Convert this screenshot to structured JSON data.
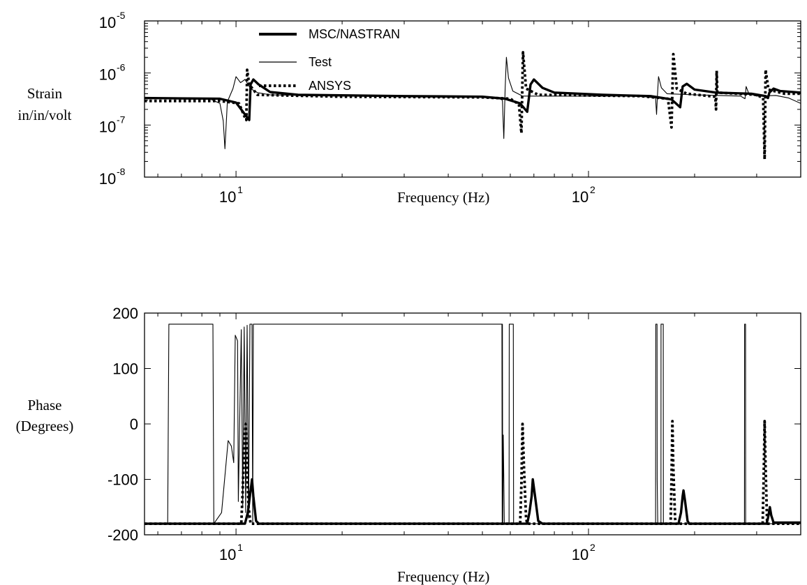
{
  "chart_data": [
    {
      "type": "line",
      "id": "magnitude",
      "xscale": "log",
      "yscale": "log",
      "xlim": [
        5.5,
        400
      ],
      "ylim": [
        1e-08,
        1e-05
      ],
      "xlabel": "Frequency (Hz)",
      "ylabel": [
        "Strain",
        "in/in/volt"
      ],
      "xticks": [
        {
          "value": 10,
          "base": "10",
          "exp": "1"
        },
        {
          "value": 100,
          "base": "10",
          "exp": "2"
        }
      ],
      "yticks": [
        {
          "value": 1e-05,
          "base": "10",
          "exp": "-5"
        },
        {
          "value": 1e-06,
          "base": "10",
          "exp": "-6"
        },
        {
          "value": 1e-07,
          "base": "10",
          "exp": "-7"
        },
        {
          "value": 1e-08,
          "base": "10",
          "exp": "-8"
        }
      ],
      "grid": false,
      "legend_position": "top-center",
      "series": [
        {
          "name": "MSC/NASTRAN",
          "style": "thick-solid",
          "points": [
            [
              5.5,
              3.3e-07
            ],
            [
              9,
              3.2e-07
            ],
            [
              10,
              2.7e-07
            ],
            [
              10.6,
              1.6e-07
            ],
            [
              10.9,
              1.25e-07
            ],
            [
              11.0,
              6e-07
            ],
            [
              11.2,
              7.5e-07
            ],
            [
              11.6,
              6e-07
            ],
            [
              12.5,
              4.3e-07
            ],
            [
              15,
              3.8e-07
            ],
            [
              30,
              3.6e-07
            ],
            [
              50,
              3.5e-07
            ],
            [
              58,
              3.2e-07
            ],
            [
              64,
              2.6e-07
            ],
            [
              67,
              1.8e-07
            ],
            [
              68.5,
              6e-07
            ],
            [
              70,
              7.5e-07
            ],
            [
              74,
              5.2e-07
            ],
            [
              80,
              4.2e-07
            ],
            [
              110,
              3.8e-07
            ],
            [
              150,
              3.6e-07
            ],
            [
              172,
              3.1e-07
            ],
            [
              182,
              2.2e-07
            ],
            [
              185,
              5.5e-07
            ],
            [
              190,
              6.2e-07
            ],
            [
              200,
              4.8e-07
            ],
            [
              230,
              4.2e-07
            ],
            [
              290,
              4e-07
            ],
            [
              318,
              3.6e-07
            ],
            [
              323,
              3.3e-07
            ],
            [
              326,
              4.2e-07
            ],
            [
              335,
              5e-07
            ],
            [
              350,
              4.5e-07
            ],
            [
              400,
              4.2e-07
            ]
          ]
        },
        {
          "name": "Test",
          "style": "thin-solid",
          "points": [
            [
              5.5,
              3.2e-07
            ],
            [
              8.5,
              3.1e-07
            ],
            [
              9.0,
              2.6e-07
            ],
            [
              9.2,
              1.2e-07
            ],
            [
              9.3,
              3.5e-08
            ],
            [
              9.45,
              2.8e-07
            ],
            [
              9.8,
              5e-07
            ],
            [
              10.0,
              8.5e-07
            ],
            [
              10.3,
              6.5e-07
            ],
            [
              10.6,
              7.5e-07
            ],
            [
              11.0,
              5e-07
            ],
            [
              11.5,
              4.2e-07
            ],
            [
              12.5,
              3.8e-07
            ],
            [
              20,
              3.6e-07
            ],
            [
              40,
              3.5e-07
            ],
            [
              55,
              3.4e-07
            ],
            [
              57,
              3e-07
            ],
            [
              57.5,
              5.5e-08
            ],
            [
              58,
              5e-07
            ],
            [
              58.5,
              2e-06
            ],
            [
              59.3,
              8e-07
            ],
            [
              61,
              4.5e-07
            ],
            [
              65,
              3.6e-07
            ],
            [
              90,
              3.6e-07
            ],
            [
              140,
              3.6e-07
            ],
            [
              155,
              3.3e-07
            ],
            [
              156,
              1.6e-07
            ],
            [
              157,
              4e-07
            ],
            [
              158,
              8.5e-07
            ],
            [
              161,
              5.2e-07
            ],
            [
              167,
              4e-07
            ],
            [
              200,
              3.8e-07
            ],
            [
              270,
              3.6e-07
            ],
            [
              278,
              3.2e-07
            ],
            [
              280,
              5.5e-07
            ],
            [
              285,
              4e-07
            ],
            [
              300,
              3.6e-07
            ],
            [
              340,
              3.7e-07
            ],
            [
              370,
              3.3e-07
            ],
            [
              400,
              2.6e-07
            ]
          ]
        },
        {
          "name": "ANSYS",
          "style": "dotted",
          "points": [
            [
              5.5,
              2.9e-07
            ],
            [
              9,
              2.9e-07
            ],
            [
              10.2,
              2.6e-07
            ],
            [
              10.55,
              1.5e-07
            ],
            [
              10.7,
              1.25e-07
            ],
            [
              10.75,
              1.15e-06
            ],
            [
              10.9,
              6e-07
            ],
            [
              11.5,
              3.8e-07
            ],
            [
              20,
              3.5e-07
            ],
            [
              50,
              3.4e-07
            ],
            [
              60,
              3.2e-07
            ],
            [
              63.5,
              2.5e-07
            ],
            [
              64.5,
              7e-08
            ],
            [
              65.2,
              2.5e-06
            ],
            [
              66.5,
              5e-07
            ],
            [
              72,
              3.8e-07
            ],
            [
              140,
              3.6e-07
            ],
            [
              168,
              3.2e-07
            ],
            [
              172,
              9e-08
            ],
            [
              174,
              2.3e-06
            ],
            [
              178,
              5e-07
            ],
            [
              190,
              4e-07
            ],
            [
              229,
              3.5e-07
            ],
            [
              230,
              2e-07
            ],
            [
              231,
              1.1e-06
            ],
            [
              232,
              4.2e-07
            ],
            [
              300,
              3.8e-07
            ],
            [
              313,
              3.3e-07
            ],
            [
              316,
              2.2e-08
            ],
            [
              318,
              1.15e-06
            ],
            [
              324,
              4.8e-07
            ],
            [
              360,
              4e-07
            ],
            [
              400,
              4e-07
            ]
          ]
        }
      ]
    },
    {
      "type": "line",
      "id": "phase",
      "xscale": "log",
      "yscale": "linear",
      "xlim": [
        5.5,
        400
      ],
      "ylim": [
        -200,
        200
      ],
      "xlabel": "Frequency (Hz)",
      "ylabel": [
        "Phase",
        "(Degrees)"
      ],
      "xticks": [
        {
          "value": 10,
          "base": "10",
          "exp": "1"
        },
        {
          "value": 100,
          "base": "10",
          "exp": "2"
        }
      ],
      "yticks": [
        {
          "value": 200,
          "label": "200"
        },
        {
          "value": 100,
          "label": "100"
        },
        {
          "value": 0,
          "label": "0"
        },
        {
          "value": -100,
          "label": "-100"
        },
        {
          "value": -200,
          "label": "-200"
        }
      ],
      "grid": false,
      "series": [
        {
          "name": "MSC/NASTRAN",
          "style": "thick-solid",
          "points": [
            [
              5.5,
              -180
            ],
            [
              10.6,
              -180
            ],
            [
              10.8,
              -160
            ],
            [
              11.0,
              -120
            ],
            [
              11.1,
              -100
            ],
            [
              11.2,
              -130
            ],
            [
              11.4,
              -175
            ],
            [
              11.6,
              -180
            ],
            [
              67,
              -180
            ],
            [
              68,
              -160
            ],
            [
              69,
              -130
            ],
            [
              69.5,
              -100
            ],
            [
              70.5,
              -130
            ],
            [
              72,
              -175
            ],
            [
              74,
              -180
            ],
            [
              180,
              -180
            ],
            [
              183,
              -160
            ],
            [
              185,
              -130
            ],
            [
              186,
              -120
            ],
            [
              188,
              -140
            ],
            [
              191,
              -175
            ],
            [
              193,
              -180
            ],
            [
              320,
              -180
            ],
            [
              323,
              -170
            ],
            [
              325,
              -160
            ],
            [
              327,
              -150
            ],
            [
              330,
              -165
            ],
            [
              335,
              -178
            ],
            [
              400,
              -178
            ]
          ]
        },
        {
          "name": "Test",
          "style": "thin-solid",
          "points": [
            [
              5.5,
              -180
            ],
            [
              6.4,
              -180
            ],
            [
              6.45,
              180
            ],
            [
              8.6,
              180
            ],
            [
              8.65,
              -180
            ],
            [
              9.1,
              -160
            ],
            [
              9.5,
              -30
            ],
            [
              9.7,
              -40
            ],
            [
              9.85,
              -70
            ],
            [
              9.95,
              160
            ],
            [
              10.1,
              150
            ],
            [
              10.15,
              -140
            ],
            [
              10.35,
              170
            ],
            [
              10.45,
              -150
            ],
            [
              10.55,
              175
            ],
            [
              10.65,
              -160
            ],
            [
              10.75,
              178
            ],
            [
              10.85,
              -170
            ],
            [
              10.95,
              180
            ],
            [
              11.1,
              180
            ],
            [
              11.15,
              -180
            ],
            [
              11.2,
              180
            ],
            [
              56.8,
              180
            ],
            [
              56.9,
              -180
            ],
            [
              57.0,
              180
            ],
            [
              57.1,
              -180
            ],
            [
              57.3,
              -20
            ],
            [
              57.5,
              -100
            ],
            [
              57.7,
              -180
            ],
            [
              59.5,
              -180
            ],
            [
              59.6,
              180
            ],
            [
              61.2,
              180
            ],
            [
              61.3,
              -180
            ],
            [
              155,
              -180
            ],
            [
              155.2,
              180
            ],
            [
              156.5,
              180
            ],
            [
              156.6,
              -100
            ],
            [
              157.2,
              -180
            ],
            [
              160.5,
              -180
            ],
            [
              160.6,
              180
            ],
            [
              163,
              180
            ],
            [
              163.1,
              -180
            ],
            [
              277,
              -180
            ],
            [
              277.2,
              180
            ],
            [
              279,
              180
            ],
            [
              279.1,
              -180
            ],
            [
              400,
              -180
            ]
          ]
        },
        {
          "name": "ANSYS",
          "style": "dotted",
          "points": [
            [
              5.5,
              -180
            ],
            [
              10.35,
              -180
            ],
            [
              10.45,
              -120
            ],
            [
              10.55,
              -40
            ],
            [
              10.65,
              0
            ],
            [
              10.75,
              -70
            ],
            [
              10.85,
              -150
            ],
            [
              11,
              -180
            ],
            [
              64,
              -180
            ],
            [
              64.5,
              -110
            ],
            [
              65,
              0
            ],
            [
              65.6,
              -80
            ],
            [
              66.5,
              -170
            ],
            [
              67,
              -180
            ],
            [
              171,
              -180
            ],
            [
              172,
              -100
            ],
            [
              173,
              5
            ],
            [
              174,
              -80
            ],
            [
              176,
              -170
            ],
            [
              177,
              -180
            ],
            [
              312,
              -180
            ],
            [
              314,
              -100
            ],
            [
              316,
              5
            ],
            [
              318,
              -80
            ],
            [
              321,
              -175
            ],
            [
              322,
              -180
            ],
            [
              400,
              -180
            ]
          ]
        }
      ]
    }
  ]
}
